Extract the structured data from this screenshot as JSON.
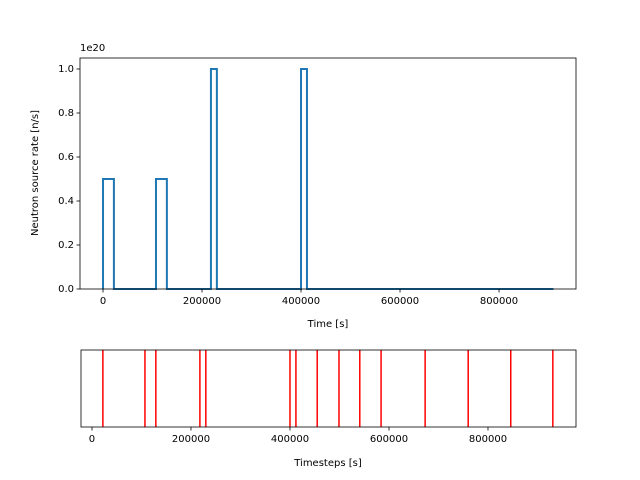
{
  "chart_data": [
    {
      "type": "line",
      "offset_label": "1e20",
      "x_label": "Time [s]",
      "y_label": "Neutron source rate [n/s]",
      "x": [
        0,
        0,
        22000,
        22000,
        107000,
        107000,
        129000,
        129000,
        218000,
        218000,
        230000,
        230000,
        400000,
        400000,
        412000,
        412000,
        910000
      ],
      "series": [
        {
          "color": "#1f77b4",
          "values": [
            0,
            0.5,
            0.5,
            0,
            0,
            0.5,
            0.5,
            0,
            0,
            1.0,
            1.0,
            0,
            0,
            1.0,
            1.0,
            0,
            0
          ]
        }
      ],
      "xlim": [
        -46500,
        955500
      ],
      "xticks": [
        0,
        200000,
        400000,
        600000,
        800000
      ],
      "ylim": [
        0,
        1.05
      ],
      "yticks": [
        {
          "value": 0,
          "label": "0.0"
        },
        {
          "value": 0.2,
          "label": "0.2"
        },
        {
          "value": 0.4,
          "label": "0.4"
        },
        {
          "value": 0.6,
          "label": "0.6"
        },
        {
          "value": 0.8,
          "label": "0.8"
        },
        {
          "value": 1.0,
          "label": "1.0"
        }
      ]
    },
    {
      "type": "eventplot",
      "x_label": "Timesteps [s]",
      "color": "#ff0000",
      "x": [
        22000,
        107000,
        129000,
        218000,
        230000,
        400000,
        412000,
        455000,
        499000,
        541000,
        584000,
        673000,
        760000,
        846000,
        931000
      ],
      "xlim": [
        -22200,
        977800
      ],
      "xticks": [
        0,
        200000,
        400000,
        600000,
        800000
      ]
    }
  ]
}
